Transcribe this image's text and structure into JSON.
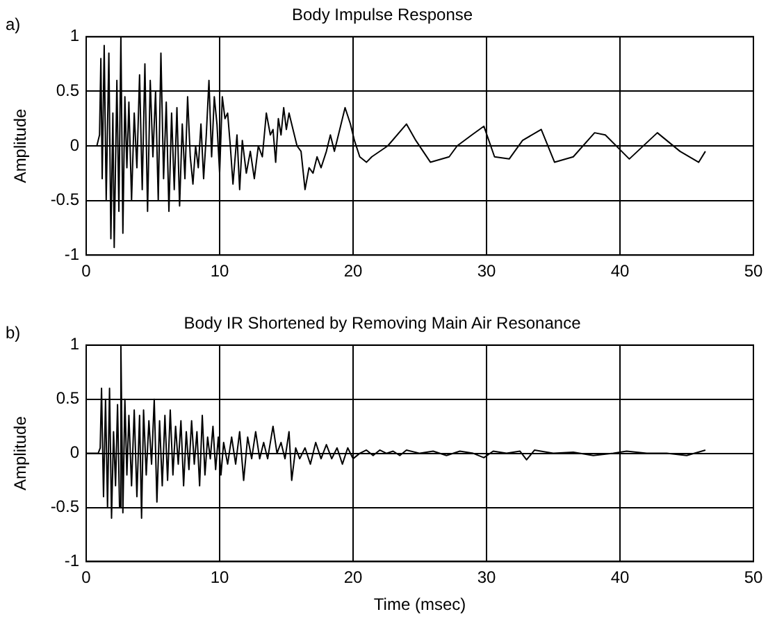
{
  "chart_data": [
    {
      "type": "line",
      "title": "Body Impulse Response",
      "ylabel": "Amplitude",
      "annotations": [
        "a)"
      ],
      "xlim": [
        0,
        50
      ],
      "xticks": [
        0,
        10,
        20,
        30,
        40,
        50
      ],
      "ylim": [
        -1,
        1
      ],
      "yticks": [
        -1,
        -0.5,
        0,
        0.5,
        1
      ],
      "grid": true,
      "x": [
        0,
        0.8,
        1.0,
        1.1,
        1.2,
        1.35,
        1.5,
        1.7,
        1.85,
        2.0,
        2.1,
        2.3,
        2.45,
        2.6,
        2.75,
        2.9,
        3.05,
        3.2,
        3.4,
        3.6,
        3.8,
        4.0,
        4.2,
        4.4,
        4.6,
        4.8,
        5.0,
        5.2,
        5.4,
        5.6,
        5.8,
        6.0,
        6.2,
        6.4,
        6.6,
        6.8,
        7.0,
        7.2,
        7.4,
        7.6,
        7.8,
        8.0,
        8.2,
        8.4,
        8.6,
        8.8,
        9.0,
        9.2,
        9.4,
        9.6,
        9.8,
        10.0,
        10.2,
        10.4,
        10.6,
        10.8,
        11.0,
        11.3,
        11.5,
        11.7,
        12.0,
        12.3,
        12.6,
        12.9,
        13.2,
        13.5,
        13.8,
        14.0,
        14.2,
        14.4,
        14.6,
        14.8,
        15.0,
        15.2,
        15.5,
        15.8,
        16.1,
        16.4,
        16.7,
        17.0,
        17.3,
        17.6,
        18.0,
        18.3,
        18.6,
        19.0,
        19.4,
        19.8,
        20.1,
        20.5,
        21.0,
        21.4,
        22.6,
        24.0,
        24.7,
        25.8,
        27.2,
        27.8,
        28.9,
        29.8,
        30.6,
        31.7,
        32.7,
        34.1,
        35.1,
        36.5,
        38.1,
        38.9,
        40.7,
        42.8,
        44.5,
        45.9,
        46.4
      ],
      "series": [
        {
          "color": "#000000",
          "values": [
            0,
            0,
            0.1,
            0.8,
            -0.3,
            0.92,
            -0.5,
            0.85,
            -0.85,
            0.3,
            -0.93,
            0.6,
            -0.6,
            1.0,
            -0.8,
            0.45,
            -0.2,
            0.4,
            -0.5,
            0.3,
            -0.2,
            0.65,
            -0.4,
            0.75,
            -0.6,
            0.6,
            -0.1,
            0.5,
            -0.5,
            0.85,
            -0.3,
            0.4,
            -0.6,
            0.3,
            -0.4,
            0.35,
            -0.55,
            0.2,
            -0.3,
            0.45,
            -0.1,
            -0.35,
            0.0,
            -0.2,
            0.2,
            -0.3,
            0.1,
            0.6,
            -0.1,
            0.45,
            0.2,
            -0.25,
            0.45,
            0.25,
            0.3,
            0.0,
            -0.35,
            0.1,
            -0.4,
            0.05,
            -0.25,
            -0.05,
            -0.3,
            0.0,
            -0.1,
            0.3,
            0.1,
            0.15,
            -0.15,
            0.25,
            0.1,
            0.35,
            0.15,
            0.3,
            0.15,
            0.0,
            -0.05,
            -0.4,
            -0.2,
            -0.25,
            -0.1,
            -0.2,
            -0.05,
            0.1,
            -0.05,
            0.15,
            0.35,
            0.2,
            0.05,
            -0.1,
            -0.15,
            -0.1,
            0,
            0.2,
            0.05,
            -0.15,
            -0.1,
            0,
            0.1,
            0.18,
            -0.1,
            -0.12,
            0.05,
            0.15,
            -0.15,
            -0.1,
            0.12,
            0.1,
            -0.12,
            0.12,
            -0.05,
            -0.15,
            -0.05
          ]
        }
      ]
    },
    {
      "type": "line",
      "title": "Body IR Shortened by Removing Main Air Resonance",
      "xlabel": "Time (msec)",
      "ylabel": "Amplitude",
      "annotations": [
        "b)"
      ],
      "xlim": [
        0,
        50
      ],
      "xticks": [
        0,
        10,
        20,
        30,
        40,
        50
      ],
      "ylim": [
        -1,
        1
      ],
      "yticks": [
        -1,
        -0.5,
        0,
        0.5,
        1
      ],
      "grid": true,
      "x": [
        0,
        0.9,
        1.05,
        1.15,
        1.3,
        1.45,
        1.6,
        1.75,
        1.9,
        2.05,
        2.2,
        2.35,
        2.5,
        2.6,
        2.75,
        2.9,
        3.05,
        3.2,
        3.4,
        3.6,
        3.8,
        4.0,
        4.15,
        4.3,
        4.5,
        4.7,
        4.9,
        5.1,
        5.3,
        5.5,
        5.7,
        5.9,
        6.1,
        6.3,
        6.5,
        6.7,
        6.9,
        7.1,
        7.3,
        7.5,
        7.7,
        7.9,
        8.1,
        8.3,
        8.5,
        8.7,
        8.9,
        9.1,
        9.3,
        9.5,
        9.7,
        9.9,
        10.1,
        10.3,
        10.6,
        10.9,
        11.2,
        11.5,
        11.8,
        12.1,
        12.4,
        12.7,
        13.0,
        13.3,
        13.6,
        14.0,
        14.3,
        14.6,
        14.9,
        15.2,
        15.4,
        15.7,
        16.0,
        16.4,
        16.8,
        17.2,
        17.6,
        18.0,
        18.4,
        18.8,
        19.2,
        19.6,
        20.0,
        20.5,
        21.0,
        21.5,
        22.0,
        22.5,
        23.0,
        23.5,
        24.0,
        25.0,
        26.0,
        27.0,
        28.0,
        29.0,
        29.8,
        30.5,
        31.5,
        32.5,
        33.0,
        33.6,
        35.0,
        36.5,
        38.0,
        39.5,
        40.5,
        42.0,
        43.5,
        45.0,
        46.4
      ],
      "series": [
        {
          "color": "#000000",
          "values": [
            0,
            0,
            0.05,
            0.6,
            -0.4,
            0.5,
            -0.5,
            0.6,
            -0.6,
            0.2,
            -0.3,
            0.45,
            -0.5,
            1.0,
            -0.55,
            0.5,
            -0.2,
            0.35,
            -0.3,
            0.4,
            -0.4,
            0.35,
            -0.6,
            0.4,
            -0.2,
            0.3,
            -0.1,
            0.5,
            -0.45,
            0.3,
            -0.3,
            0.35,
            -0.25,
            0.4,
            -0.2,
            0.25,
            -0.1,
            0.3,
            -0.3,
            0.2,
            -0.15,
            0.3,
            -0.1,
            0.2,
            -0.3,
            0.35,
            -0.2,
            0.15,
            -0.05,
            0.25,
            -0.15,
            0.15,
            -0.2,
            0.1,
            -0.1,
            0.15,
            -0.1,
            0.2,
            -0.25,
            0.15,
            -0.05,
            0.2,
            -0.05,
            0.1,
            -0.05,
            0.25,
            0.0,
            0.1,
            -0.05,
            0.2,
            -0.25,
            0.05,
            -0.05,
            0.05,
            -0.1,
            0.1,
            -0.05,
            0.08,
            -0.05,
            0.05,
            -0.1,
            0.05,
            -0.05,
            0.0,
            0.03,
            -0.02,
            0.03,
            0.0,
            0.02,
            -0.02,
            0.03,
            0.0,
            0.02,
            -0.02,
            0.02,
            0.0,
            -0.04,
            0.02,
            0.0,
            0.02,
            -0.06,
            0.03,
            0.0,
            0.01,
            -0.02,
            0.0,
            0.02,
            0.0,
            0.0,
            -0.02,
            0.03
          ]
        }
      ]
    }
  ]
}
